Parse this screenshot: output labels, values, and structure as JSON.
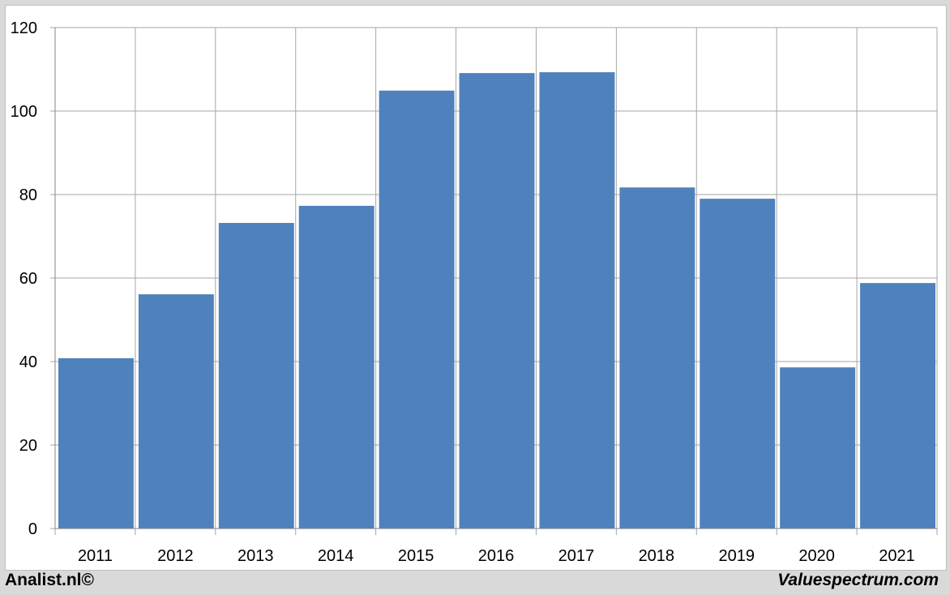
{
  "chart_data": {
    "type": "bar",
    "title": "",
    "xlabel": "",
    "ylabel": "",
    "categories": [
      "2011",
      "2012",
      "2013",
      "2014",
      "2015",
      "2016",
      "2017",
      "2018",
      "2019",
      "2020",
      "2021"
    ],
    "values": [
      40.8,
      56.1,
      73.2,
      77.3,
      104.9,
      109.1,
      109.3,
      81.7,
      79.0,
      38.6,
      58.8
    ],
    "ylim": [
      0,
      120
    ],
    "yticks": [
      0,
      20,
      40,
      60,
      80,
      100,
      120
    ],
    "grid": true,
    "bar_color": "#4f81bd"
  },
  "footer": {
    "left": "Analist.nl©",
    "right": "Valuespectrum.com"
  }
}
